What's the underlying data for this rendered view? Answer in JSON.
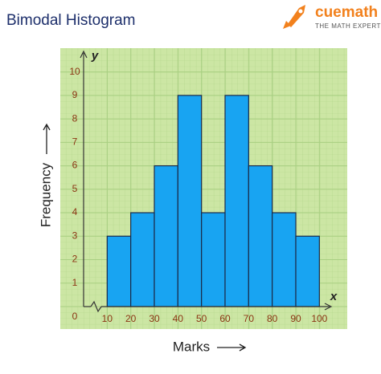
{
  "chart_data": {
    "type": "histogram",
    "title": "Bimodal Histogram",
    "x_label": "Marks",
    "y_label": "Frequency",
    "x_axis_letter": "x",
    "y_axis_letter": "y",
    "bins": [
      10,
      20,
      30,
      40,
      50,
      60,
      70,
      80,
      90,
      100
    ],
    "counts": [
      3,
      4,
      6,
      9,
      4,
      9,
      6,
      4,
      3
    ],
    "color": "#18a4f2",
    "xlim": [
      0,
      105
    ],
    "ylim": [
      0,
      10.5
    ],
    "xticks": [
      10,
      20,
      30,
      40,
      50,
      60,
      70,
      80,
      90,
      100
    ],
    "yticks": [
      0,
      1,
      2,
      3,
      4,
      5,
      6,
      7,
      8,
      9,
      10
    ],
    "grid": true
  },
  "logo": {
    "name": "cuemath",
    "tagline": "THE MATH EXPERT"
  }
}
